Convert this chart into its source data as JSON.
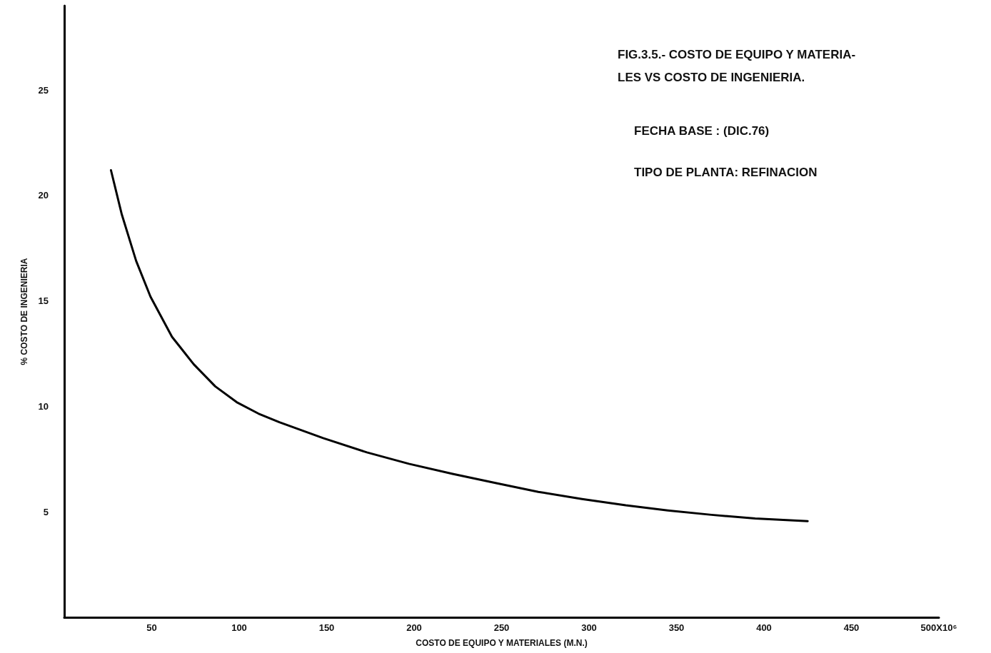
{
  "chart_data": {
    "type": "line",
    "title": "FIG.3.5.- COSTO DE EQUIPO Y MATERIA-\nLES VS COSTO DE INGENIERIA.",
    "xlabel": "COSTO DE EQUIPO Y MATERIALES (M.N.)",
    "ylabel": "% COSTO DE INGENIERIA",
    "annotations": [
      "FECHA BASE : (DIC.76)",
      "TIPO DE PLANTA: REFINACION"
    ],
    "series": [
      {
        "color": "#000000",
        "x": [
          26.7,
          32.9,
          41.1,
          49.3,
          61.6,
          74,
          86.3,
          98.6,
          111,
          123,
          148,
          173,
          197,
          222,
          247,
          271,
          296,
          321,
          345,
          370,
          395,
          425
        ],
        "values": [
          21.2,
          19.1,
          16.9,
          15.2,
          13.3,
          12.0,
          10.95,
          10.2,
          9.66,
          9.25,
          8.5,
          7.82,
          7.28,
          6.8,
          6.36,
          5.95,
          5.61,
          5.31,
          5.07,
          4.86,
          4.69,
          4.56
        ]
      }
    ],
    "xlim": [
      0,
      500
    ],
    "xticks": [
      50,
      100,
      150,
      200,
      250,
      300,
      350,
      400,
      450,
      {
        "value": 500,
        "label": "500X10⁶"
      }
    ],
    "ylim": [
      0,
      29
    ],
    "yticks": [
      5,
      10,
      15,
      20,
      25
    ],
    "marker": "none",
    "line_style": "solid"
  }
}
